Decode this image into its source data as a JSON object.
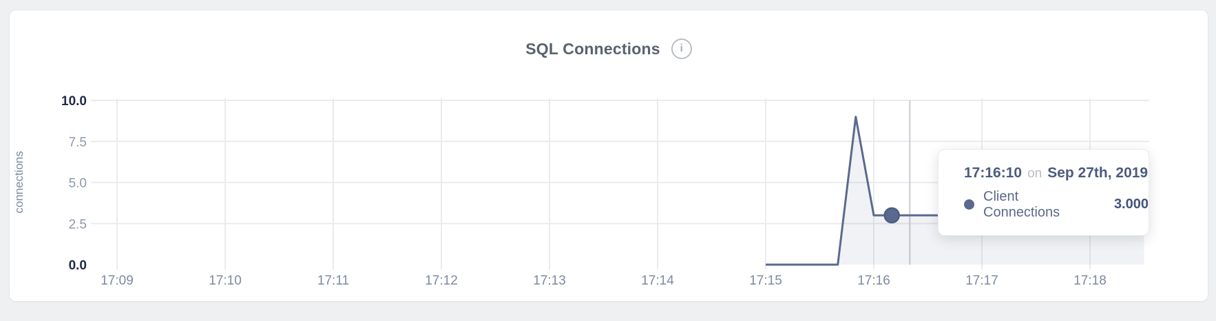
{
  "card": {
    "title": "SQL Connections",
    "info_icon": "i"
  },
  "chart_data": {
    "type": "area",
    "title": "SQL Connections",
    "xlabel": "",
    "ylabel": "connections",
    "ylim": [
      0,
      10
    ],
    "grid": true,
    "legend_position": "none",
    "x_ticks": [
      "17:09",
      "17:10",
      "17:11",
      "17:12",
      "17:13",
      "17:14",
      "17:15",
      "17:16",
      "17:17",
      "17:18"
    ],
    "y_ticks": [
      {
        "label": "0.0",
        "value": 0,
        "strong": true
      },
      {
        "label": "2.5",
        "value": 2.5,
        "strong": false
      },
      {
        "label": "5.0",
        "value": 5,
        "strong": false
      },
      {
        "label": "7.5",
        "value": 7.5,
        "strong": false
      },
      {
        "label": "10.0",
        "value": 10,
        "strong": true
      }
    ],
    "series": [
      {
        "name": "Client Connections",
        "color": "#5a6a8e",
        "points": [
          {
            "t": "17:15:00",
            "v": 0
          },
          {
            "t": "17:15:10",
            "v": 0
          },
          {
            "t": "17:15:20",
            "v": 0
          },
          {
            "t": "17:15:30",
            "v": 0
          },
          {
            "t": "17:15:40",
            "v": 0
          },
          {
            "t": "17:15:50",
            "v": 9
          },
          {
            "t": "17:16:00",
            "v": 3
          },
          {
            "t": "17:16:10",
            "v": 3
          },
          {
            "t": "17:16:20",
            "v": 3
          },
          {
            "t": "17:16:30",
            "v": 3
          },
          {
            "t": "17:16:40",
            "v": 3
          },
          {
            "t": "17:16:50",
            "v": 3
          },
          {
            "t": "17:17:00",
            "v": 3
          },
          {
            "t": "17:17:10",
            "v": 3
          },
          {
            "t": "17:17:20",
            "v": 3
          },
          {
            "t": "17:17:30",
            "v": 3
          },
          {
            "t": "17:17:40",
            "v": 3
          },
          {
            "t": "17:17:50",
            "v": 3
          },
          {
            "t": "17:18:00",
            "v": 3
          },
          {
            "t": "17:18:10",
            "v": 3
          },
          {
            "t": "17:18:20",
            "v": 3
          },
          {
            "t": "17:18:30",
            "v": 3
          }
        ]
      }
    ]
  },
  "hover": {
    "point_time": "17:16:10",
    "point_value": 3,
    "crosshair_time": "17:16:20"
  },
  "tooltip": {
    "time": "17:16:10",
    "preposition": "on",
    "date": "Sep 27th, 2019",
    "series_label": "Client Connections",
    "value": "3.000"
  },
  "colors": {
    "line": "#5a6a8e",
    "dot_stroke": "#4d5d83",
    "area_fill": "rgba(90,106,142,0.09)",
    "grid": "#eaebee",
    "crosshair": "#c9cbd2",
    "page_bg": "#eef0f2"
  }
}
